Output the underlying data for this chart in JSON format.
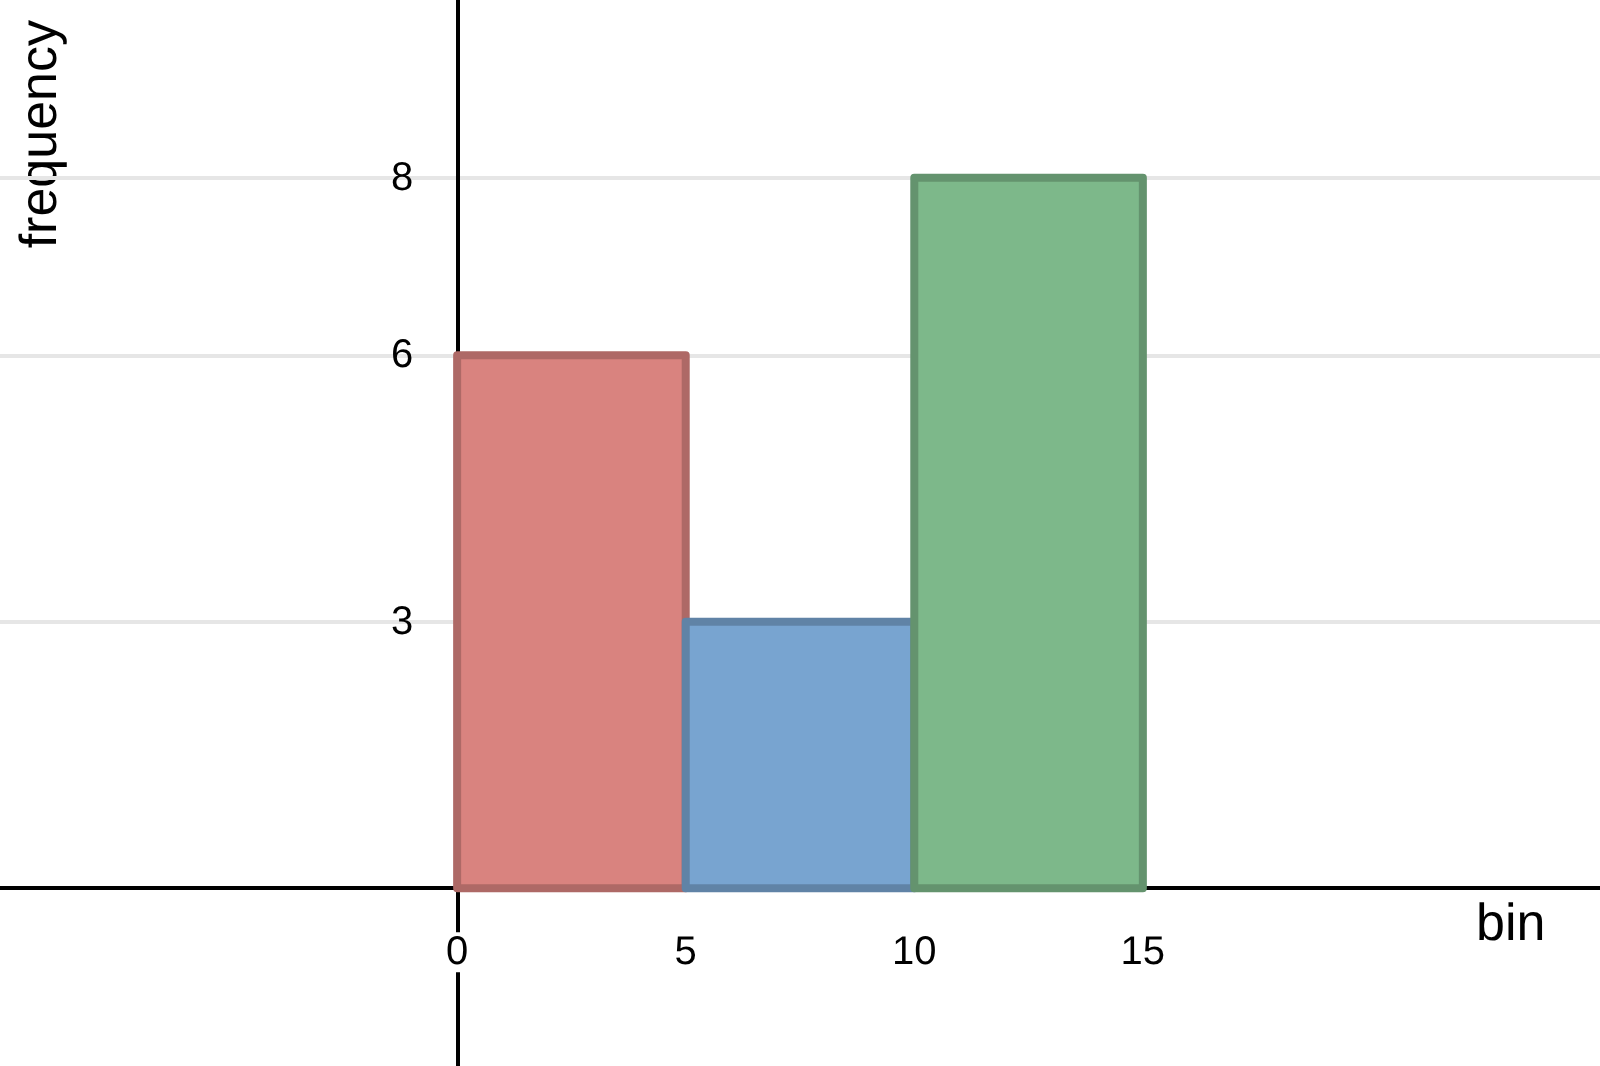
{
  "chart_data": {
    "type": "histogram",
    "xlabel": "bin",
    "ylabel": "frequency",
    "bins": [
      0,
      5,
      10,
      15
    ],
    "values": [
      6,
      3,
      8
    ],
    "colors": [
      "#d9837f",
      "#78a4d0",
      "#7db88a"
    ],
    "xlim": [
      -10,
      25
    ],
    "ylim": [
      -2,
      10
    ],
    "xticks": [
      0,
      5,
      10,
      15
    ],
    "yticks": [
      3,
      6,
      8
    ],
    "grid": "y"
  }
}
